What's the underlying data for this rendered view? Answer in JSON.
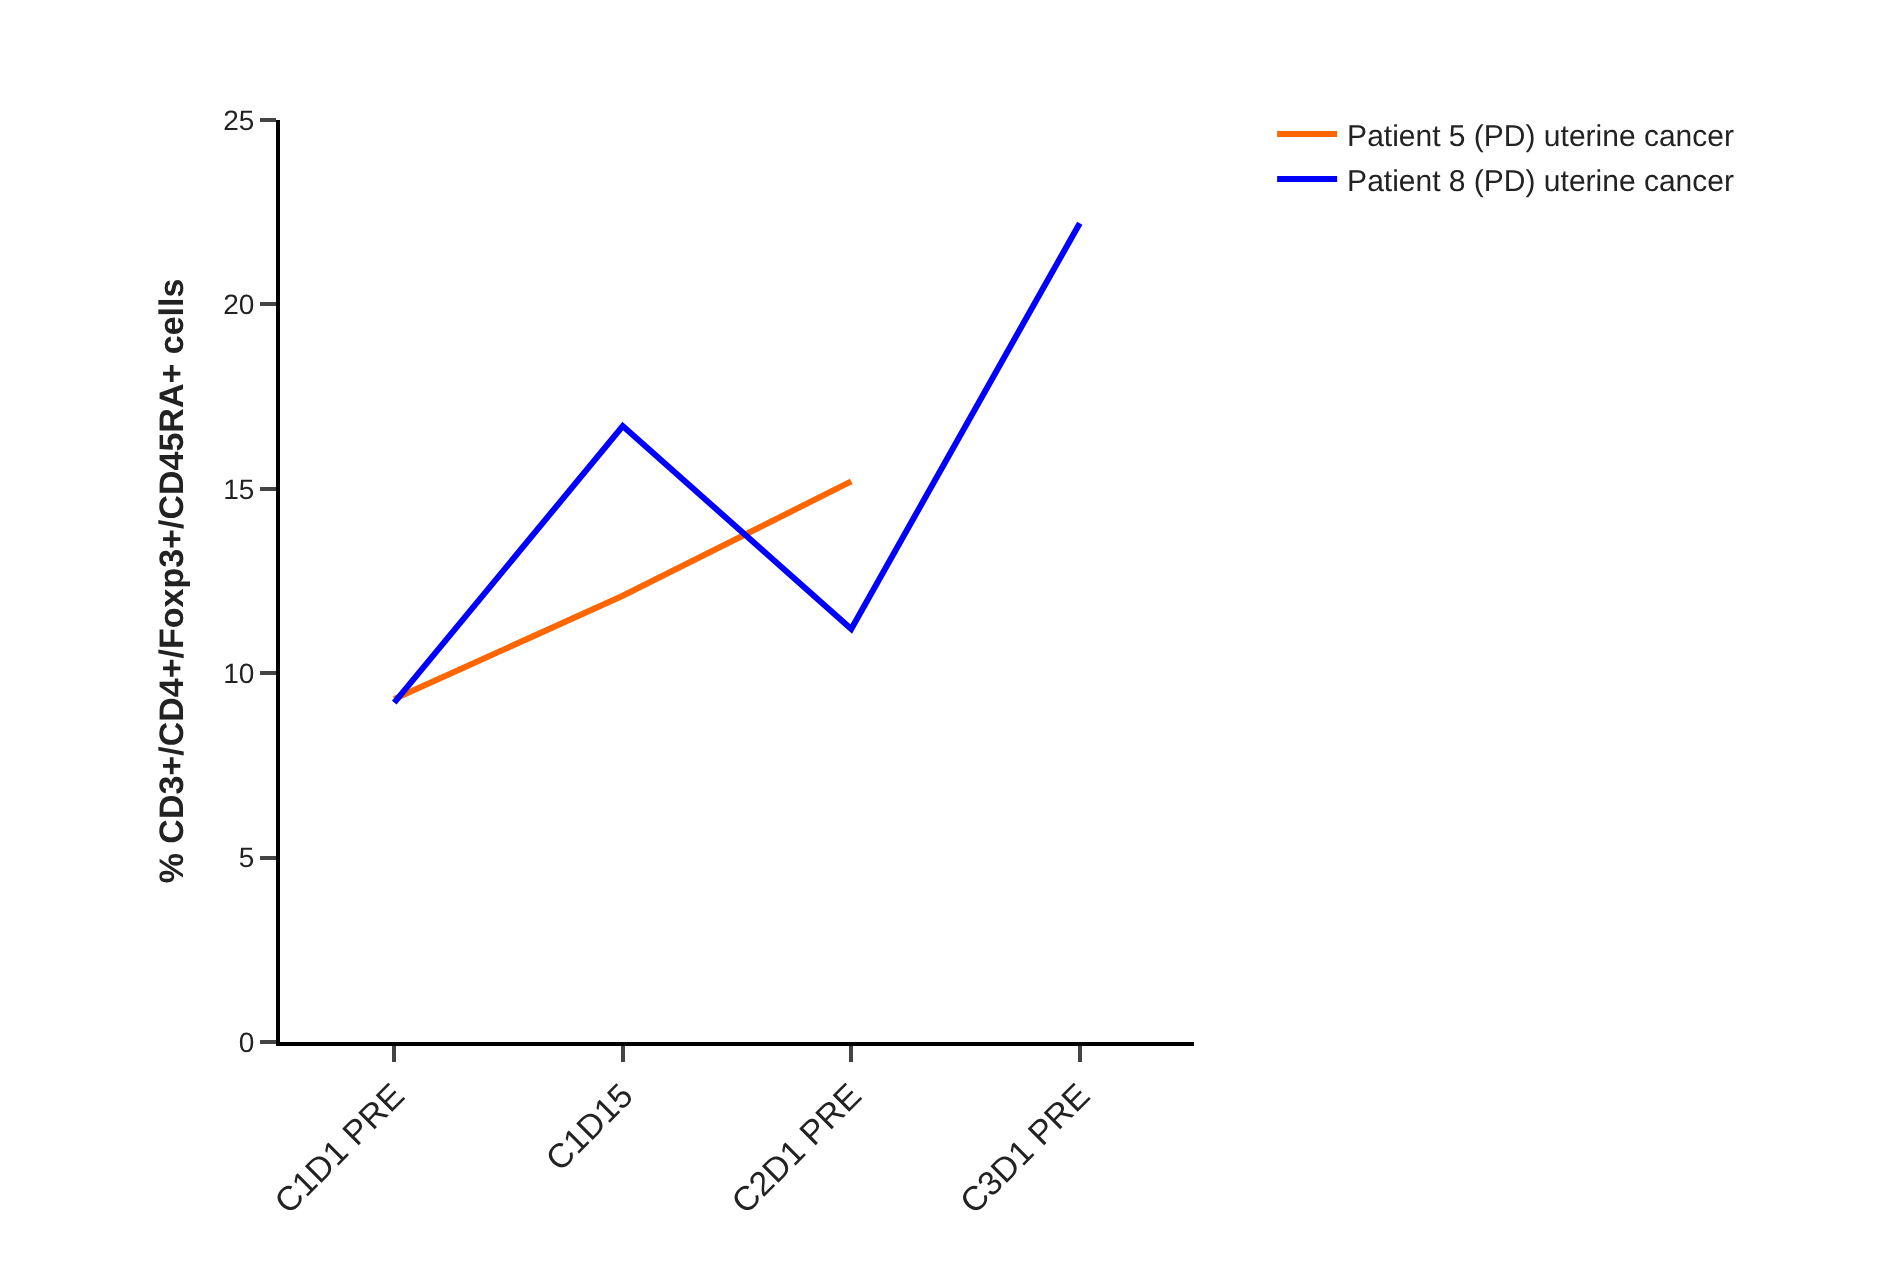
{
  "chart_data": {
    "type": "line",
    "ylabel": "% CD3+/CD4+/Foxp3+/CD45RA+ cells",
    "categories": [
      "C1D1 PRE",
      "C1D15",
      "C2D1 PRE",
      "C3D1 PRE"
    ],
    "series": [
      {
        "name": "Patient 5 (PD) uterine cancer",
        "color": "#ff6600",
        "values": [
          9.3,
          12.1,
          15.2,
          null
        ]
      },
      {
        "name": "Patient 8 (PD) uterine cancer",
        "color": "#0000ff",
        "values": [
          9.2,
          16.7,
          11.2,
          22.2
        ]
      }
    ],
    "ylim": [
      0,
      25
    ],
    "yticks": [
      0,
      5,
      10,
      15,
      20,
      25
    ],
    "legend": "top right",
    "marker": "none",
    "line_style": "solid"
  }
}
